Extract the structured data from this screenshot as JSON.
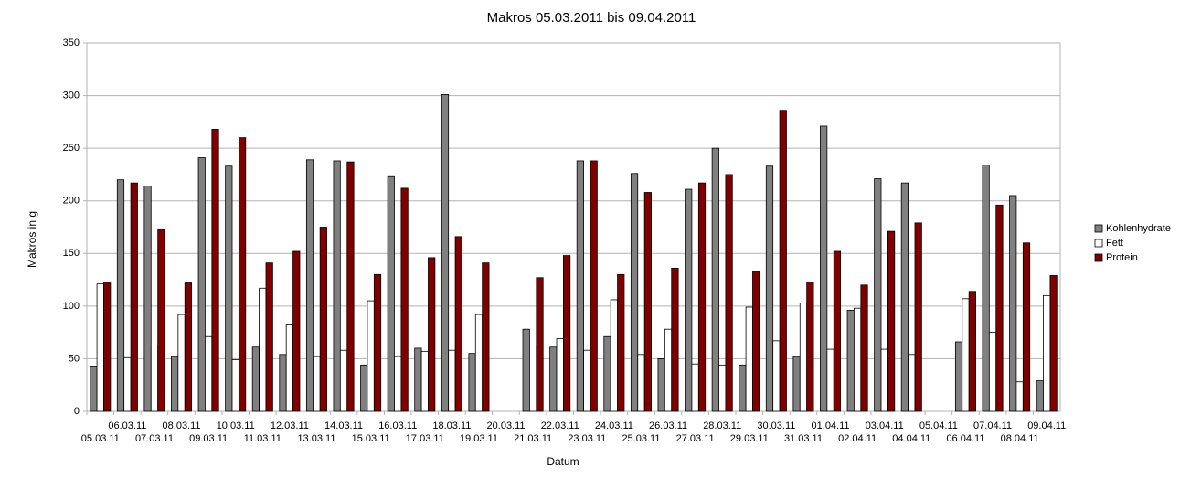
{
  "chart_data": {
    "type": "bar",
    "title": "Makros 05.03.2011 bis 09.04.2011",
    "x_label": "Datum",
    "y_label": "Makros in g",
    "categories": [
      "05.03.11",
      "06.03.11",
      "07.03.11",
      "08.03.11",
      "09.03.11",
      "10.03.11",
      "11.03.11",
      "12.03.11",
      "13.03.11",
      "14.03.11",
      "15.03.11",
      "16.03.11",
      "17.03.11",
      "18.03.11",
      "19.03.11",
      "20.03.11",
      "21.03.11",
      "22.03.11",
      "23.03.11",
      "24.03.11",
      "25.03.11",
      "26.03.11",
      "27.03.11",
      "28.03.11",
      "29.03.11",
      "30.03.11",
      "31.03.11",
      "01.04.11",
      "02.04.11",
      "03.04.11",
      "04.04.11",
      "05.04.11",
      "06.04.11",
      "07.04.11",
      "08.04.11",
      "09.04.11"
    ],
    "series": [
      {
        "name": "Kohlenhydrate",
        "color": "#808080",
        "values": [
          43,
          220,
          214,
          52,
          241,
          233,
          61,
          54,
          239,
          238,
          44,
          223,
          60,
          301,
          55,
          null,
          78,
          61,
          238,
          71,
          226,
          50,
          211,
          250,
          44,
          233,
          52,
          271,
          96,
          221,
          217,
          null,
          66,
          234,
          205,
          29
        ]
      },
      {
        "name": "Fett",
        "color": "#ffffff",
        "values": [
          121,
          51,
          63,
          92,
          71,
          49,
          117,
          82,
          52,
          58,
          105,
          52,
          57,
          58,
          92,
          null,
          63,
          69,
          58,
          106,
          54,
          78,
          45,
          44,
          99,
          67,
          103,
          59,
          98,
          59,
          54,
          null,
          107,
          75,
          28,
          110
        ]
      },
      {
        "name": "Protein",
        "color": "#800000",
        "values": [
          122,
          217,
          173,
          122,
          268,
          260,
          141,
          152,
          175,
          237,
          130,
          212,
          146,
          166,
          141,
          null,
          127,
          148,
          238,
          130,
          208,
          136,
          217,
          225,
          133,
          286,
          123,
          152,
          120,
          171,
          179,
          null,
          114,
          196,
          160,
          129
        ]
      }
    ],
    "ylim": [
      0,
      350
    ],
    "yticks": [
      0,
      50,
      100,
      150,
      200,
      250,
      300,
      350
    ],
    "grid": true,
    "legend": "right"
  }
}
